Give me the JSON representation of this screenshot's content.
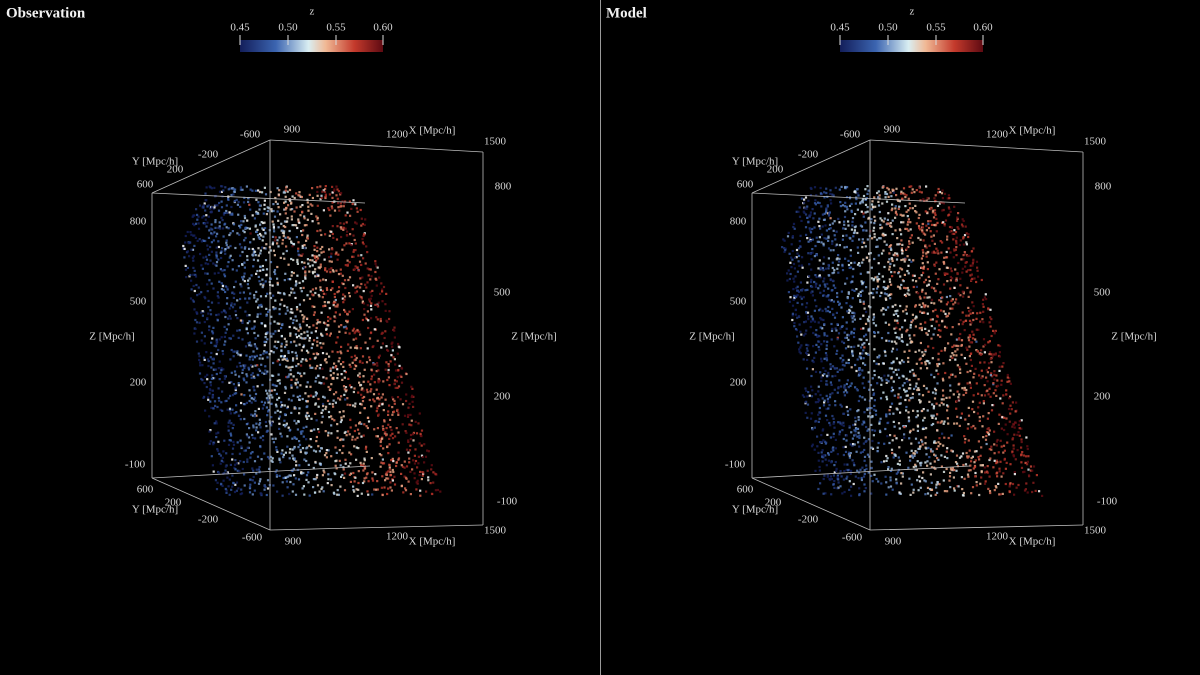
{
  "panels": [
    {
      "title": "Observation",
      "colorbar": {
        "label": "z",
        "ticks": [
          "0.45",
          "0.50",
          "0.55",
          "0.60"
        ]
      },
      "axis_labels": [
        "-600",
        "900",
        "1200",
        "X [Mpc/h]",
        "1500",
        "Y [Mpc/h]",
        "-200",
        "200",
        "600",
        "800",
        "800",
        "500",
        "500",
        "Z [Mpc/h]",
        "Z [Mpc/h]",
        "200",
        "200",
        "-100",
        "-100",
        "600",
        "200",
        "Y [Mpc/h]",
        "-200",
        "-600",
        "900",
        "1200",
        "X [Mpc/h]",
        "1500"
      ]
    },
    {
      "title": "Model",
      "colorbar": {
        "label": "z",
        "ticks": [
          "0.45",
          "0.50",
          "0.55",
          "0.60"
        ]
      },
      "axis_labels": [
        "-600",
        "900",
        "1200",
        "X [Mpc/h]",
        "1500",
        "Y [Mpc/h]",
        "-200",
        "200",
        "600",
        "800",
        "800",
        "500",
        "500",
        "Z [Mpc/h]",
        "Z [Mpc/h]",
        "200",
        "200",
        "-100",
        "-100",
        "600",
        "200",
        "Y [Mpc/h]",
        "-200",
        "-600",
        "900",
        "1200",
        "X [Mpc/h]",
        "1500"
      ]
    }
  ]
}
